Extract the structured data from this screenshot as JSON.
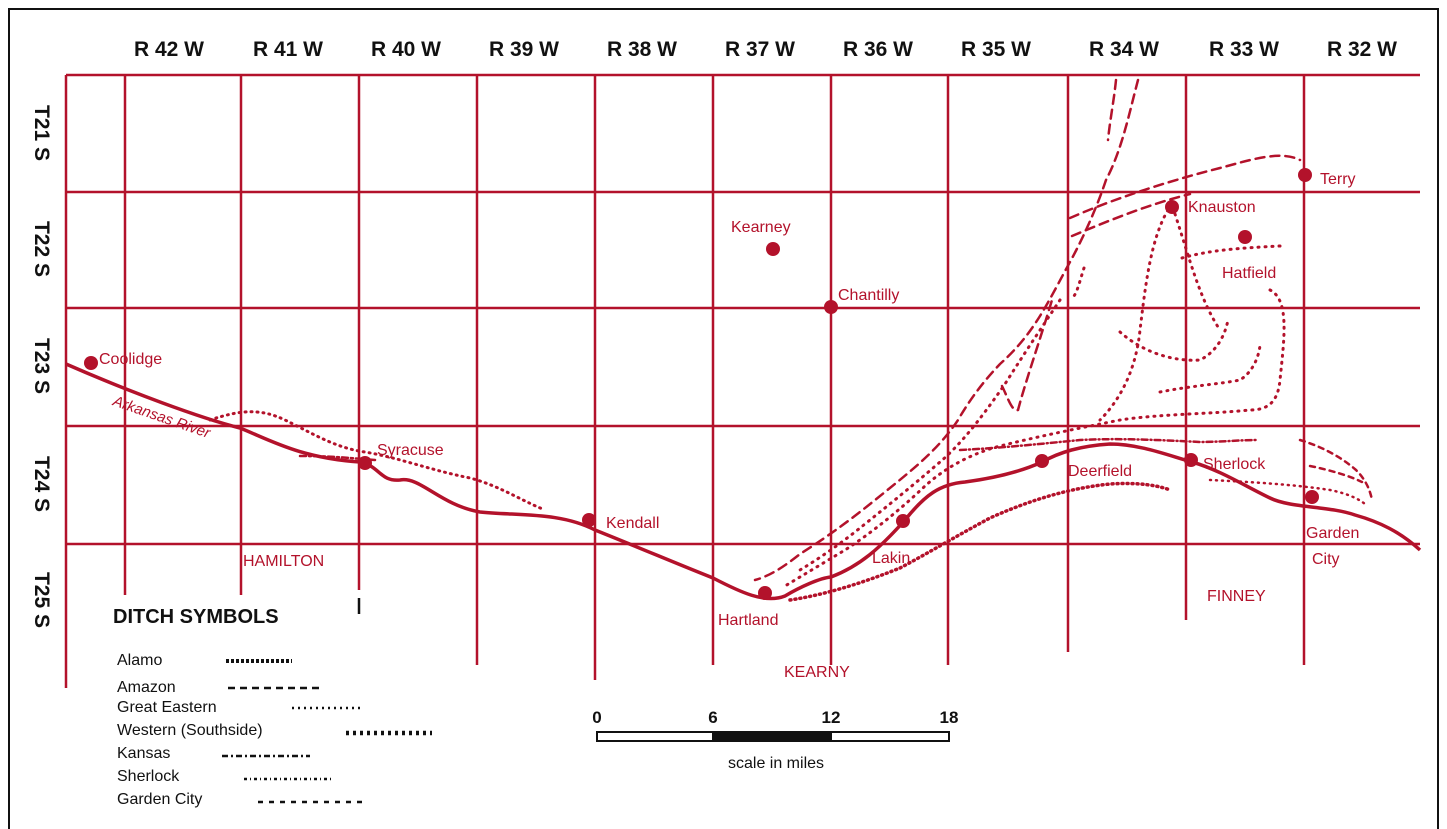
{
  "range_labels": [
    "R 42 W",
    "R 41 W",
    "R 40 W",
    "R 39 W",
    "R 38 W",
    "R 37 W",
    "R 36 W",
    "R 35 W",
    "R 34 W",
    "R 33 W",
    "R 32 W"
  ],
  "township_labels": [
    "T21 S",
    "T22 S",
    "T23 S",
    "T24 S",
    "T25 S"
  ],
  "towns": {
    "coolidge": "Coolidge",
    "syracuse": "Syracuse",
    "kendall": "Kendall",
    "hartland": "Hartland",
    "lakin": "Lakin",
    "deerfield": "Deerfield",
    "sherlock": "Sherlock",
    "garden_city_1": "Garden",
    "garden_city_2": "City",
    "kearney": "Kearney",
    "chantilly": "Chantilly",
    "knauston": "Knauston",
    "hatfield": "Hatfield",
    "terry": "Terry"
  },
  "counties": {
    "hamilton": "HAMILTON",
    "kearny": "KEARNY",
    "finney": "FINNEY"
  },
  "river_label": "Arkansas River",
  "legend": {
    "title": "DITCH SYMBOLS",
    "items": [
      {
        "label": "Alamo",
        "pattern": "alamo"
      },
      {
        "label": "Amazon",
        "pattern": "amazon"
      },
      {
        "label": "Great Eastern",
        "pattern": "great-eastern"
      },
      {
        "label": "Western (Southside)",
        "pattern": "western"
      },
      {
        "label": "Kansas",
        "pattern": "kansas"
      },
      {
        "label": "Sherlock",
        "pattern": "sherlock"
      },
      {
        "label": "Garden City",
        "pattern": "garden-city"
      }
    ]
  },
  "scale": {
    "ticks": [
      "0",
      "6",
      "12",
      "18"
    ],
    "caption": "scale in miles"
  },
  "colors": {
    "map_red": "#b3122b",
    "ink": "#111111"
  }
}
